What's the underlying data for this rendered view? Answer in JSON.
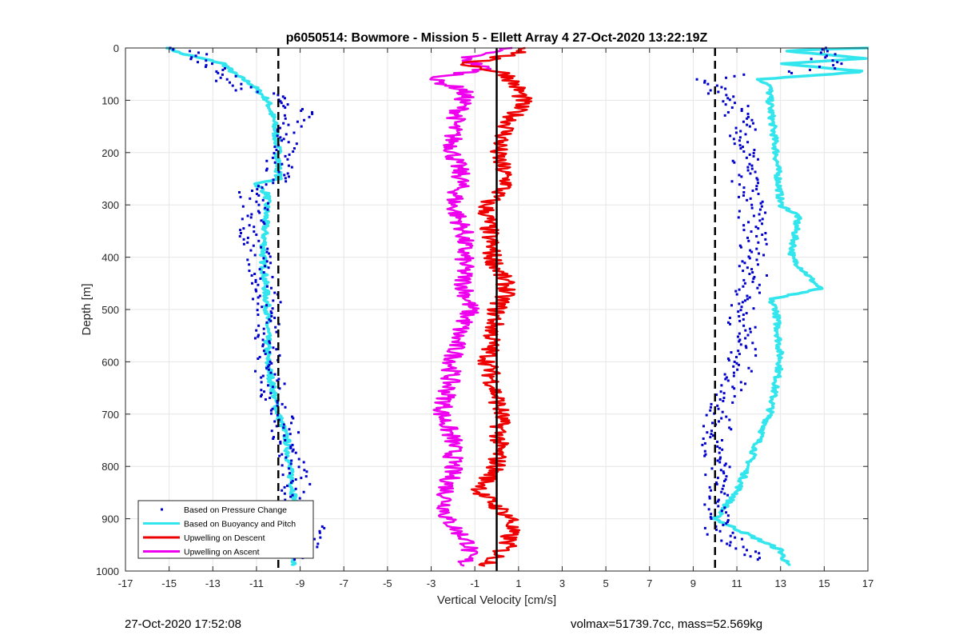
{
  "chart_data": {
    "type": "scatter",
    "title": "p6050514: Bowmore - Mission 5 - Ellett Array 4 27-Oct-2020 13:22:19Z",
    "xlabel": "Vertical Velocity [cm/s]",
    "ylabel": "Depth [m]",
    "xlim": [
      -17,
      17
    ],
    "ylim": [
      0,
      1000
    ],
    "y_reversed": true,
    "grid": true,
    "legend_position": "bottom-left",
    "x_ticks": [
      -17,
      -15,
      -13,
      -11,
      -9,
      -7,
      -5,
      -3,
      -1,
      1,
      3,
      5,
      7,
      9,
      11,
      13,
      15,
      17
    ],
    "y_ticks": [
      0,
      100,
      200,
      300,
      400,
      500,
      600,
      700,
      800,
      900,
      1000
    ],
    "reference_lines": [
      {
        "x": -10,
        "style": "dashed",
        "color": "#000000"
      },
      {
        "x": 0,
        "style": "solid",
        "color": "#000000"
      },
      {
        "x": 10,
        "style": "dashed",
        "color": "#000000"
      }
    ],
    "series": [
      {
        "name": "Based on Pressure Change",
        "color": "#0000cc",
        "marker": "dot",
        "descent": {
          "depth": [
            0,
            20,
            40,
            60,
            80,
            100,
            120,
            140,
            160,
            180,
            200,
            230,
            250,
            270,
            300,
            350,
            400,
            450,
            500,
            550,
            600,
            650,
            700,
            750,
            800,
            850,
            900,
            920,
            950,
            980
          ],
          "velocity": [
            -14.5,
            -13.5,
            -12.5,
            -12.5,
            -11.5,
            -9.5,
            -9.0,
            -9.2,
            -9.5,
            -9.6,
            -9.8,
            -10.0,
            -9.6,
            -11.5,
            -11.0,
            -11.3,
            -11.0,
            -10.6,
            -10.5,
            -10.4,
            -10.5,
            -10.3,
            -10.0,
            -9.6,
            -9.2,
            -9.2,
            -9.0,
            -8.3,
            -8.6,
            -9.3
          ]
        },
        "ascent": {
          "depth": [
            0,
            20,
            40,
            60,
            80,
            100,
            120,
            150,
            200,
            250,
            300,
            350,
            400,
            450,
            500,
            550,
            600,
            650,
            700,
            750,
            800,
            850,
            900,
            930,
            950,
            980
          ],
          "velocity": [
            15.0,
            14.8,
            15.5,
            9.0,
            10.0,
            10.8,
            11.0,
            11.2,
            11.3,
            11.4,
            11.6,
            11.8,
            11.8,
            11.7,
            11.2,
            11.3,
            11.2,
            10.8,
            10.2,
            10.0,
            10.1,
            10.2,
            10.0,
            10.3,
            11.0,
            12.0
          ]
        }
      },
      {
        "name": "Based on Buoyancy and Pitch",
        "color": "#33e6ee",
        "marker": "line",
        "descent": {
          "depth": [
            0,
            10,
            30,
            50,
            70,
            100,
            140,
            200,
            250,
            260,
            280,
            400,
            500,
            600,
            700,
            750,
            800,
            850,
            900,
            950,
            990
          ],
          "velocity": [
            -15.0,
            -14.5,
            -12.5,
            -12.0,
            -11.2,
            -10.5,
            -10.2,
            -10.0,
            -10.0,
            -11.0,
            -10.5,
            -10.7,
            -10.5,
            -10.5,
            -10.0,
            -9.6,
            -9.5,
            -9.3,
            -9.2,
            -9.3,
            -9.3
          ]
        },
        "ascent": {
          "depth": [
            0,
            5,
            20,
            30,
            45,
            60,
            70,
            100,
            200,
            300,
            320,
            400,
            460,
            480,
            500,
            600,
            700,
            750,
            800,
            850,
            900,
            940,
            960,
            990
          ],
          "velocity": [
            17.0,
            13.0,
            17.0,
            13.0,
            17.0,
            12.0,
            12.5,
            12.5,
            12.8,
            13.0,
            13.8,
            13.5,
            14.8,
            12.5,
            12.8,
            13.0,
            12.5,
            12.0,
            11.5,
            11.0,
            10.0,
            12.0,
            13.0,
            13.3
          ]
        }
      },
      {
        "name": "Upwelling on Descent",
        "color": "#ee0000",
        "marker": "line",
        "depth": [
          0,
          10,
          30,
          50,
          80,
          100,
          150,
          200,
          260,
          300,
          400,
          460,
          500,
          600,
          700,
          800,
          850,
          900,
          950,
          990
        ],
        "velocity": [
          1.5,
          1.0,
          -1.5,
          0.5,
          1.0,
          1.2,
          0.5,
          0.0,
          0.5,
          -0.5,
          -0.2,
          0.5,
          0.0,
          -0.4,
          0.2,
          0.0,
          -0.8,
          0.7,
          0.5,
          -0.4
        ]
      },
      {
        "name": "Upwelling on Ascent",
        "color": "#ee00ee",
        "marker": "line",
        "depth": [
          0,
          20,
          40,
          60,
          80,
          100,
          150,
          200,
          250,
          300,
          350,
          400,
          450,
          500,
          550,
          600,
          650,
          700,
          750,
          800,
          850,
          900,
          950,
          990
        ],
        "velocity": [
          0.5,
          -1.5,
          -0.5,
          -3.0,
          -1.5,
          -1.5,
          -2.0,
          -2.0,
          -1.6,
          -2.0,
          -1.5,
          -1.5,
          -1.5,
          -1.2,
          -1.8,
          -2.0,
          -2.2,
          -2.5,
          -2.0,
          -2.0,
          -2.3,
          -2.3,
          -1.2,
          -1.5
        ]
      }
    ]
  },
  "footer": {
    "left": "27-Oct-2020 17:52:08",
    "right": "volmax=51739.7cc, mass=52.569kg"
  }
}
